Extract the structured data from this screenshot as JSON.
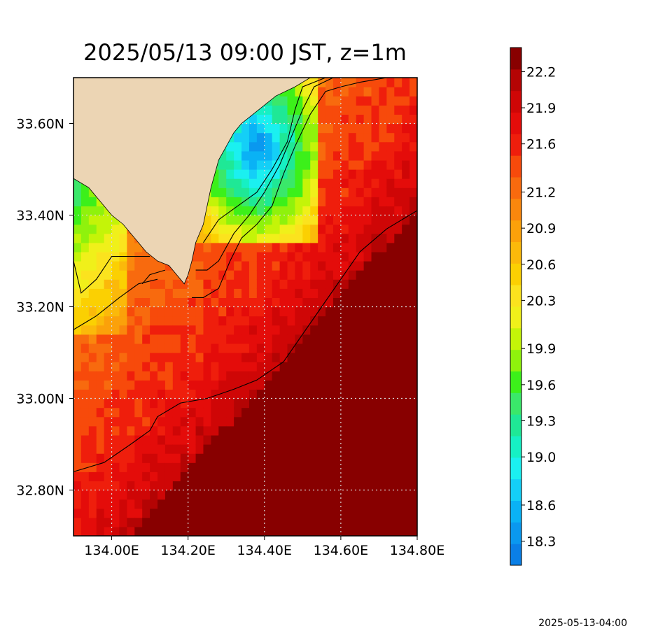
{
  "chart_data": {
    "type": "heatmap",
    "title": "2025/05/13 09:00 JST, z=1m",
    "xlabel": "",
    "ylabel": "",
    "xlim": [
      133.9,
      134.8
    ],
    "ylim": [
      32.7,
      33.7
    ],
    "x_ticks": [
      134.0,
      134.2,
      134.4,
      134.6,
      134.8
    ],
    "x_tick_labels": [
      "134.00E",
      "134.20E",
      "134.40E",
      "134.60E",
      "134.80E"
    ],
    "y_ticks": [
      32.8,
      33.0,
      33.2,
      33.4,
      33.6
    ],
    "y_tick_labels": [
      "32.80N",
      "33.00N",
      "33.20N",
      "33.40N",
      "33.60N"
    ],
    "grid": true,
    "colorbar": {
      "position": "right",
      "range": [
        18.1,
        22.4
      ],
      "tick_values": [
        18.3,
        18.6,
        19.0,
        19.3,
        19.6,
        19.9,
        20.3,
        20.6,
        20.9,
        21.2,
        21.6,
        21.9,
        22.2
      ],
      "tick_labels": [
        "18.3",
        "18.6",
        "19.0",
        "19.3",
        "19.6",
        "19.9",
        "20.3",
        "20.6",
        "20.9",
        "21.2",
        "21.6",
        "21.9",
        "22.2"
      ],
      "colors": [
        "#0a7fe6",
        "#0a98ef",
        "#0ab2f5",
        "#14cff7",
        "#1bf0f0",
        "#16f0c4",
        "#1fe896",
        "#3ae86a",
        "#3cf01a",
        "#8ff20c",
        "#c4f408",
        "#f0f01a",
        "#fbe31e",
        "#fbd002",
        "#fbb90a",
        "#fba10a",
        "#fa870d",
        "#f86a0e",
        "#f74a0b",
        "#ef1e0c",
        "#e40c0a",
        "#cf0606",
        "#b40404",
        "#880000"
      ]
    },
    "surface_temperature": {
      "description": "Sea temperature at 1 m depth (deg C), 0.02 degree cells",
      "land_color": "#ecd5b4",
      "contour_color": "#000000"
    }
  },
  "footer": {
    "timestamp": "2025-05-13-04:00"
  }
}
